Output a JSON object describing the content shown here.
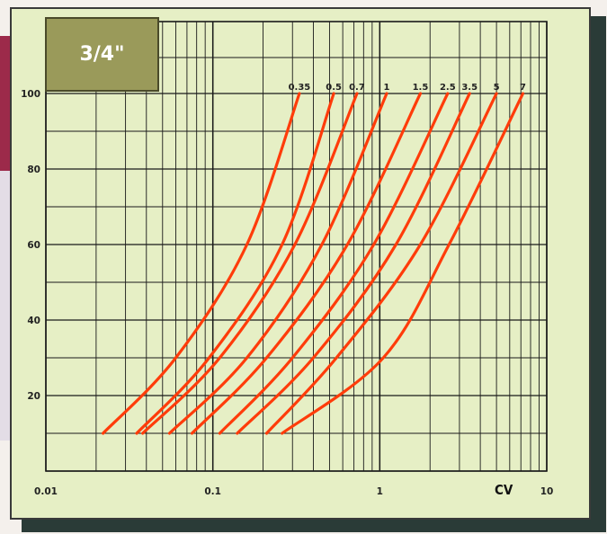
{
  "badge": {
    "label": "3/4\"",
    "color": "#9a9a5a"
  },
  "colors": {
    "curve": "#ff3c0a",
    "grid": "#1a1a1a",
    "background": "#e6efc5",
    "frame_shadow": "#2a3b37"
  },
  "chart_data": {
    "type": "line",
    "title": "",
    "xlabel": "CV",
    "ylabel": "",
    "x_scale": "log",
    "xlim": [
      0.01,
      10
    ],
    "ylim": [
      0,
      100
    ],
    "x_ticks": [
      {
        "value": 0.01,
        "label": "0.01"
      },
      {
        "value": 0.1,
        "label": "0.1"
      },
      {
        "value": 1,
        "label": "1"
      },
      {
        "value": 10,
        "label": "10"
      }
    ],
    "y_ticks": [
      {
        "value": 20,
        "label": "20"
      },
      {
        "value": 40,
        "label": "40"
      },
      {
        "value": 60,
        "label": "60"
      },
      {
        "value": 80,
        "label": "80"
      },
      {
        "value": 100,
        "label": "100"
      }
    ],
    "grid": true,
    "series": [
      {
        "name": "0.35",
        "points": [
          [
            0.022,
            10
          ],
          [
            0.06,
            30
          ],
          [
            0.16,
            60
          ],
          [
            0.33,
            100
          ]
        ]
      },
      {
        "name": "0.5",
        "points": [
          [
            0.035,
            10
          ],
          [
            0.095,
            30
          ],
          [
            0.26,
            60
          ],
          [
            0.53,
            100
          ]
        ]
      },
      {
        "name": "0.7",
        "points": [
          [
            0.038,
            10
          ],
          [
            0.11,
            30
          ],
          [
            0.31,
            60
          ],
          [
            0.73,
            100
          ]
        ]
      },
      {
        "name": "1",
        "points": [
          [
            0.055,
            10
          ],
          [
            0.16,
            30
          ],
          [
            0.45,
            60
          ],
          [
            1.1,
            100
          ]
        ]
      },
      {
        "name": "1.5",
        "points": [
          [
            0.075,
            10
          ],
          [
            0.21,
            30
          ],
          [
            0.64,
            60
          ],
          [
            1.75,
            100
          ]
        ]
      },
      {
        "name": "2.5",
        "points": [
          [
            0.11,
            10
          ],
          [
            0.3,
            30
          ],
          [
            0.92,
            60
          ],
          [
            2.55,
            100
          ]
        ]
      },
      {
        "name": "3.5",
        "points": [
          [
            0.14,
            10
          ],
          [
            0.4,
            30
          ],
          [
            1.25,
            60
          ],
          [
            3.45,
            100
          ]
        ]
      },
      {
        "name": "5",
        "points": [
          [
            0.21,
            10
          ],
          [
            0.55,
            30
          ],
          [
            1.75,
            60
          ],
          [
            5.0,
            100
          ]
        ]
      },
      {
        "name": "7",
        "points": [
          [
            0.26,
            10
          ],
          [
            1.05,
            30
          ],
          [
            2.6,
            60
          ],
          [
            7.2,
            100
          ]
        ]
      }
    ]
  }
}
